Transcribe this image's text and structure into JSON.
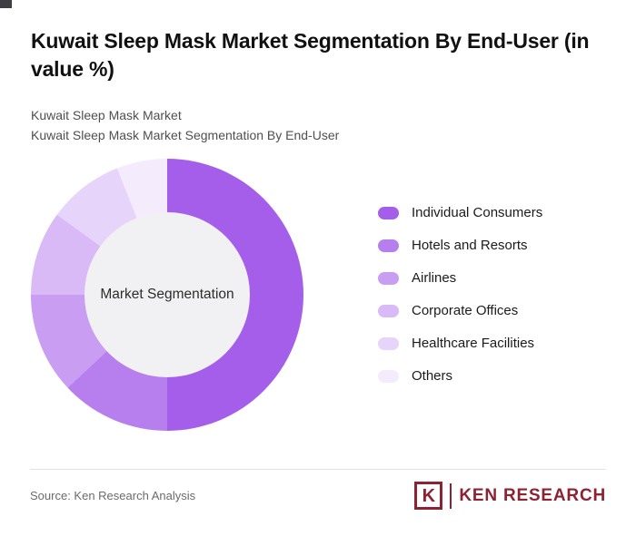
{
  "header": {
    "title": "Kuwait Sleep Mask Market Segmentation By End-User (in value %)",
    "subtitle_line1": "Kuwait Sleep Mask Market",
    "subtitle_line2": "Kuwait Sleep Mask Market Segmentation By End-User"
  },
  "chart_data": {
    "type": "pie",
    "donut": true,
    "title": "Kuwait Sleep Mask Market Segmentation By End-User (in value %)",
    "center_label": "Market Segmentation",
    "categories": [
      "Individual Consumers",
      "Hotels and Resorts",
      "Airlines",
      "Corporate Offices",
      "Healthcare Facilities",
      "Others"
    ],
    "values": [
      50,
      13,
      12,
      10,
      9,
      6
    ],
    "colors": [
      "#a55eea",
      "#b77fee",
      "#c99df2",
      "#d9baf6",
      "#e7d4fa",
      "#f4ecfc"
    ],
    "legend_position": "right",
    "start_angle_deg": 0,
    "direction": "clockwise"
  },
  "footer": {
    "source": "Source: Ken Research Analysis",
    "logo_letter": "K",
    "logo_text": "KEN RESEARCH",
    "logo_color": "#8e2132"
  }
}
